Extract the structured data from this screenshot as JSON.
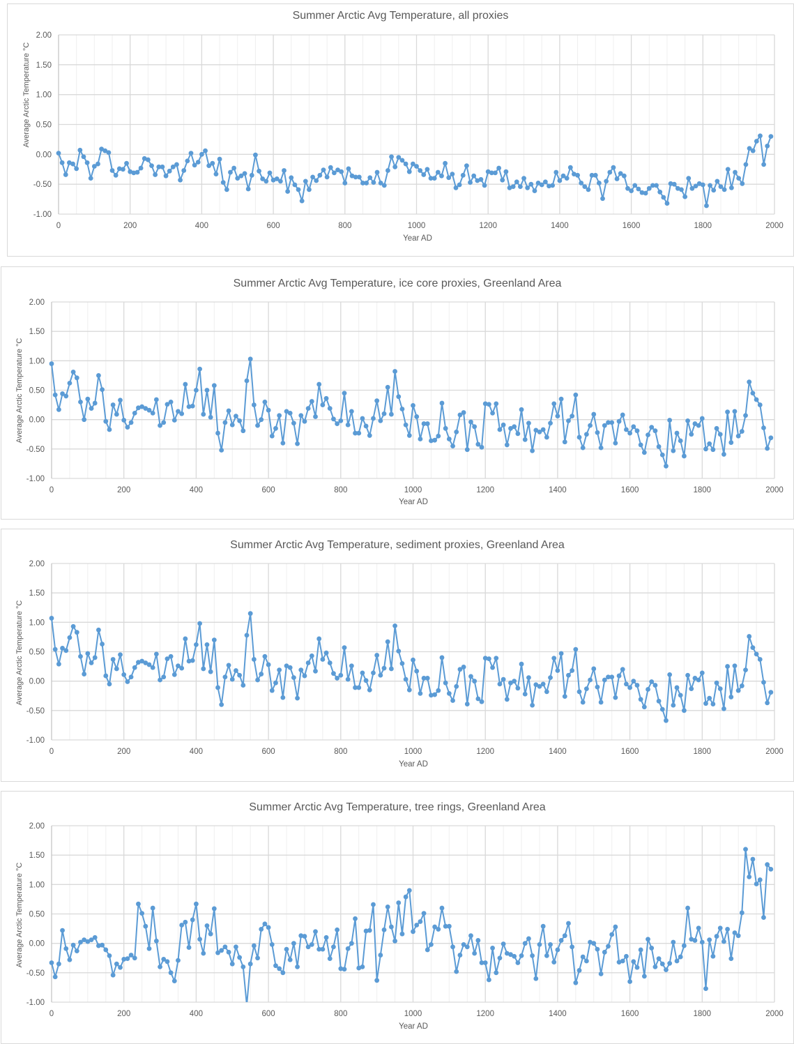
{
  "chart_data": [
    {
      "type": "line",
      "title": "Summer Arctic Avg Temperature,  all proxies",
      "xlabel": "Year AD",
      "ylabel": "Average Arctic Temperature °C",
      "xlim": [
        0,
        2000
      ],
      "ylim": [
        -1.0,
        2.0
      ],
      "xticks": [
        "0",
        "200",
        "400",
        "600",
        "800",
        "1000",
        "1200",
        "1400",
        "1600",
        "1800",
        "2000"
      ],
      "yticks": [
        "2.00",
        "1.50",
        "1.00",
        "0.50",
        "0.00",
        "-0.50",
        "-1.00"
      ],
      "grid": true,
      "color": "#5b9bd5",
      "x_start": 0,
      "x_step": 10,
      "values": [
        0.02,
        -0.14,
        -0.34,
        -0.14,
        -0.16,
        -0.24,
        0.07,
        -0.04,
        -0.14,
        -0.4,
        -0.2,
        -0.16,
        0.09,
        0.06,
        0.03,
        -0.27,
        -0.35,
        -0.24,
        -0.25,
        -0.15,
        -0.29,
        -0.31,
        -0.3,
        -0.23,
        -0.07,
        -0.09,
        -0.19,
        -0.34,
        -0.21,
        -0.21,
        -0.36,
        -0.28,
        -0.21,
        -0.17,
        -0.43,
        -0.27,
        -0.11,
        0.02,
        -0.18,
        -0.13,
        0.0,
        0.06,
        -0.19,
        -0.15,
        -0.33,
        -0.08,
        -0.47,
        -0.59,
        -0.3,
        -0.23,
        -0.4,
        -0.36,
        -0.32,
        -0.58,
        -0.35,
        -0.01,
        -0.28,
        -0.41,
        -0.45,
        -0.31,
        -0.43,
        -0.41,
        -0.45,
        -0.27,
        -0.62,
        -0.39,
        -0.51,
        -0.59,
        -0.78,
        -0.45,
        -0.59,
        -0.38,
        -0.44,
        -0.35,
        -0.26,
        -0.38,
        -0.22,
        -0.31,
        -0.26,
        -0.29,
        -0.48,
        -0.24,
        -0.36,
        -0.38,
        -0.38,
        -0.48,
        -0.48,
        -0.39,
        -0.47,
        -0.3,
        -0.48,
        -0.52,
        -0.27,
        -0.04,
        -0.21,
        -0.05,
        -0.1,
        -0.16,
        -0.29,
        -0.16,
        -0.2,
        -0.27,
        -0.34,
        -0.25,
        -0.4,
        -0.4,
        -0.3,
        -0.36,
        -0.15,
        -0.39,
        -0.33,
        -0.56,
        -0.51,
        -0.35,
        -0.19,
        -0.47,
        -0.36,
        -0.44,
        -0.42,
        -0.52,
        -0.29,
        -0.31,
        -0.31,
        -0.23,
        -0.43,
        -0.29,
        -0.56,
        -0.54,
        -0.46,
        -0.54,
        -0.4,
        -0.56,
        -0.5,
        -0.61,
        -0.48,
        -0.51,
        -0.46,
        -0.53,
        -0.52,
        -0.3,
        -0.44,
        -0.36,
        -0.4,
        -0.22,
        -0.33,
        -0.35,
        -0.48,
        -0.54,
        -0.59,
        -0.35,
        -0.35,
        -0.48,
        -0.74,
        -0.45,
        -0.3,
        -0.22,
        -0.41,
        -0.32,
        -0.36,
        -0.57,
        -0.61,
        -0.52,
        -0.58,
        -0.64,
        -0.65,
        -0.57,
        -0.52,
        -0.52,
        -0.63,
        -0.72,
        -0.82,
        -0.49,
        -0.5,
        -0.57,
        -0.59,
        -0.71,
        -0.4,
        -0.57,
        -0.53,
        -0.49,
        -0.51,
        -0.86,
        -0.52,
        -0.6,
        -0.45,
        -0.54,
        -0.59,
        -0.25,
        -0.56,
        -0.3,
        -0.4,
        -0.49,
        -0.17,
        0.1,
        0.06,
        0.22,
        0.31,
        -0.17,
        0.14,
        0.3
      ]
    },
    {
      "type": "line",
      "title": "Summer Arctic Avg Temperature, ice core proxies, Greenland Area",
      "xlabel": "Year AD",
      "ylabel": "Average Arctic Temperature °C",
      "xlim": [
        0,
        2000
      ],
      "ylim": [
        -1.0,
        2.0
      ],
      "xticks": [
        "0",
        "200",
        "400",
        "600",
        "800",
        "1000",
        "1200",
        "1400",
        "1600",
        "1800",
        "2000"
      ],
      "yticks": [
        "2.00",
        "1.50",
        "1.00",
        "0.50",
        "0.00",
        "-0.50",
        "-1.00"
      ],
      "grid": true,
      "color": "#5b9bd5",
      "x_start": 0,
      "x_step": 10,
      "values": [
        0.95,
        0.42,
        0.17,
        0.44,
        0.4,
        0.62,
        0.81,
        0.71,
        0.3,
        0.0,
        0.35,
        0.19,
        0.28,
        0.75,
        0.51,
        -0.03,
        -0.17,
        0.25,
        0.09,
        0.33,
        -0.01,
        -0.13,
        -0.05,
        0.11,
        0.2,
        0.22,
        0.19,
        0.16,
        0.11,
        0.34,
        -0.1,
        -0.05,
        0.26,
        0.3,
        -0.01,
        0.14,
        0.1,
        0.6,
        0.22,
        0.23,
        0.5,
        0.86,
        0.09,
        0.5,
        0.04,
        0.58,
        -0.23,
        -0.52,
        -0.05,
        0.15,
        -0.09,
        0.06,
        -0.02,
        -0.19,
        0.66,
        1.03,
        0.25,
        -0.1,
        0.0,
        0.3,
        0.16,
        -0.28,
        -0.15,
        0.07,
        -0.4,
        0.14,
        0.11,
        -0.06,
        -0.41,
        0.07,
        -0.03,
        0.19,
        0.31,
        0.05,
        0.6,
        0.25,
        0.36,
        0.19,
        0.01,
        -0.07,
        -0.02,
        0.45,
        -0.09,
        0.14,
        -0.23,
        -0.23,
        0.02,
        -0.11,
        -0.27,
        0.02,
        0.32,
        -0.02,
        0.1,
        0.55,
        0.09,
        0.82,
        0.39,
        0.18,
        -0.09,
        -0.27,
        0.24,
        0.05,
        -0.33,
        -0.07,
        -0.07,
        -0.36,
        -0.35,
        -0.28,
        0.28,
        -0.15,
        -0.33,
        -0.45,
        -0.21,
        0.08,
        0.12,
        -0.51,
        -0.04,
        -0.12,
        -0.42,
        -0.47,
        0.27,
        0.26,
        0.11,
        0.27,
        -0.17,
        -0.09,
        -0.43,
        -0.15,
        -0.12,
        -0.24,
        0.17,
        -0.34,
        -0.06,
        -0.53,
        -0.18,
        -0.21,
        -0.17,
        -0.3,
        -0.06,
        0.27,
        0.06,
        0.35,
        -0.38,
        -0.02,
        0.06,
        0.42,
        -0.3,
        -0.48,
        -0.25,
        -0.1,
        0.09,
        -0.22,
        -0.48,
        -0.1,
        -0.05,
        -0.05,
        -0.4,
        -0.03,
        0.08,
        -0.17,
        -0.23,
        -0.12,
        -0.19,
        -0.43,
        -0.56,
        -0.26,
        -0.13,
        -0.19,
        -0.46,
        -0.6,
        -0.79,
        -0.01,
        -0.53,
        -0.23,
        -0.36,
        -0.62,
        -0.02,
        -0.25,
        -0.07,
        -0.1,
        0.02,
        -0.5,
        -0.41,
        -0.51,
        -0.15,
        -0.25,
        -0.59,
        0.13,
        -0.39,
        0.14,
        -0.28,
        -0.2,
        0.07,
        0.64,
        0.45,
        0.34,
        0.25,
        -0.14,
        -0.49,
        -0.31
      ]
    },
    {
      "type": "line",
      "title": "Summer Arctic Avg Temperature, sediment proxies, Greenland Area",
      "xlabel": "Year AD",
      "ylabel": "Average Arctic Temperature °C",
      "xlim": [
        0,
        2000
      ],
      "ylim": [
        -1.0,
        2.0
      ],
      "xticks": [
        "0",
        "200",
        "400",
        "600",
        "800",
        "1000",
        "1200",
        "1400",
        "1600",
        "1800",
        "2000"
      ],
      "yticks": [
        "2.00",
        "1.50",
        "1.00",
        "0.50",
        "0.00",
        "-0.50",
        "-1.00"
      ],
      "grid": true,
      "color": "#5b9bd5",
      "x_start": 0,
      "x_step": 10,
      "values": [
        1.07,
        0.54,
        0.29,
        0.56,
        0.52,
        0.74,
        0.93,
        0.83,
        0.42,
        0.12,
        0.47,
        0.31,
        0.4,
        0.87,
        0.63,
        0.09,
        -0.05,
        0.37,
        0.21,
        0.45,
        0.11,
        -0.01,
        0.07,
        0.23,
        0.32,
        0.34,
        0.31,
        0.28,
        0.23,
        0.46,
        0.02,
        0.07,
        0.38,
        0.42,
        0.11,
        0.26,
        0.22,
        0.72,
        0.34,
        0.35,
        0.62,
        0.98,
        0.21,
        0.62,
        0.16,
        0.7,
        -0.11,
        -0.4,
        0.07,
        0.27,
        0.03,
        0.18,
        0.1,
        -0.07,
        0.78,
        1.15,
        0.37,
        0.02,
        0.12,
        0.42,
        0.28,
        -0.16,
        -0.03,
        0.19,
        -0.28,
        0.26,
        0.23,
        0.06,
        -0.29,
        0.19,
        0.09,
        0.31,
        0.43,
        0.17,
        0.72,
        0.37,
        0.48,
        0.31,
        0.13,
        0.05,
        0.1,
        0.57,
        0.03,
        0.26,
        -0.11,
        -0.11,
        0.14,
        0.01,
        -0.15,
        0.14,
        0.44,
        0.1,
        0.22,
        0.67,
        0.21,
        0.94,
        0.51,
        0.3,
        0.03,
        -0.15,
        0.36,
        0.17,
        -0.21,
        0.05,
        0.05,
        -0.24,
        -0.23,
        -0.16,
        0.4,
        -0.03,
        -0.21,
        -0.33,
        -0.09,
        0.2,
        0.24,
        -0.39,
        0.08,
        0.0,
        -0.3,
        -0.35,
        0.39,
        0.38,
        0.23,
        0.39,
        -0.05,
        0.03,
        -0.31,
        -0.03,
        0.0,
        -0.12,
        0.29,
        -0.22,
        0.06,
        -0.41,
        -0.06,
        -0.09,
        -0.05,
        -0.18,
        0.06,
        0.39,
        0.18,
        0.47,
        -0.26,
        0.1,
        0.18,
        0.54,
        -0.18,
        -0.36,
        -0.13,
        0.02,
        0.21,
        -0.1,
        -0.36,
        0.02,
        0.07,
        0.07,
        -0.28,
        0.09,
        0.2,
        -0.05,
        -0.11,
        0.0,
        -0.07,
        -0.31,
        -0.44,
        -0.14,
        -0.01,
        -0.07,
        -0.34,
        -0.48,
        -0.67,
        0.11,
        -0.41,
        -0.11,
        -0.24,
        -0.5,
        0.1,
        -0.13,
        0.05,
        0.02,
        0.14,
        -0.38,
        -0.29,
        -0.39,
        -0.03,
        -0.13,
        -0.47,
        0.25,
        -0.27,
        0.26,
        -0.16,
        -0.08,
        0.19,
        0.76,
        0.57,
        0.46,
        0.37,
        -0.02,
        -0.37,
        -0.19
      ]
    },
    {
      "type": "line",
      "title": "Summer Arctic Avg Temperature, tree rings, Greenland Area",
      "xlabel": "Year AD",
      "ylabel": "Average Arctic Temperature °C",
      "xlim": [
        0,
        2000
      ],
      "ylim": [
        -1.0,
        2.0
      ],
      "xticks": [
        "0",
        "200",
        "400",
        "600",
        "800",
        "1000",
        "1200",
        "1400",
        "1600",
        "1800",
        "2000"
      ],
      "yticks": [
        "2.00",
        "1.50",
        "1.00",
        "0.50",
        "0.00",
        "-0.50",
        "-1.00"
      ],
      "grid": true,
      "color": "#5b9bd5",
      "x_start": 0,
      "x_step": 10,
      "values": [
        -0.33,
        -0.57,
        -0.35,
        0.22,
        -0.09,
        -0.28,
        -0.03,
        -0.13,
        0.02,
        0.06,
        0.03,
        0.06,
        0.1,
        -0.04,
        -0.03,
        -0.11,
        -0.21,
        -0.54,
        -0.35,
        -0.41,
        -0.27,
        -0.26,
        -0.2,
        -0.25,
        0.67,
        0.51,
        0.29,
        -0.09,
        0.6,
        0.04,
        -0.4,
        -0.27,
        -0.31,
        -0.5,
        -0.64,
        -0.29,
        0.31,
        0.36,
        -0.07,
        0.4,
        0.67,
        0.07,
        -0.17,
        0.3,
        0.16,
        0.59,
        -0.16,
        -0.12,
        -0.06,
        -0.15,
        -0.35,
        -0.06,
        -0.24,
        -0.4,
        -1.05,
        -0.35,
        -0.04,
        -0.25,
        0.24,
        0.33,
        0.27,
        -0.02,
        -0.38,
        -0.43,
        -0.5,
        -0.1,
        -0.28,
        0.0,
        -0.4,
        0.13,
        0.12,
        -0.06,
        -0.02,
        0.2,
        -0.1,
        -0.1,
        0.1,
        -0.26,
        -0.06,
        0.23,
        -0.43,
        -0.44,
        -0.09,
        0.0,
        0.42,
        -0.42,
        -0.4,
        0.21,
        0.22,
        0.66,
        -0.63,
        -0.2,
        0.23,
        0.62,
        0.28,
        0.04,
        0.69,
        0.16,
        0.79,
        0.9,
        0.2,
        0.31,
        0.37,
        0.51,
        -0.11,
        -0.02,
        0.28,
        0.24,
        0.6,
        0.29,
        0.29,
        -0.06,
        -0.48,
        -0.2,
        -0.02,
        -0.06,
        0.13,
        -0.17,
        0.05,
        -0.33,
        -0.33,
        -0.62,
        -0.08,
        -0.5,
        -0.25,
        -0.01,
        -0.17,
        -0.19,
        -0.22,
        -0.33,
        -0.21,
        0.0,
        0.08,
        -0.21,
        -0.6,
        -0.02,
        0.29,
        -0.21,
        -0.02,
        -0.32,
        -0.11,
        0.05,
        0.13,
        0.34,
        -0.06,
        -0.67,
        -0.46,
        -0.23,
        -0.3,
        0.02,
        0.0,
        -0.1,
        -0.52,
        -0.15,
        -0.05,
        0.15,
        0.28,
        -0.32,
        -0.3,
        -0.22,
        -0.65,
        -0.31,
        -0.41,
        -0.11,
        -0.56,
        0.07,
        -0.08,
        -0.4,
        -0.26,
        -0.35,
        -0.45,
        -0.34,
        0.02,
        -0.3,
        -0.23,
        -0.04,
        0.6,
        0.07,
        0.05,
        0.26,
        0.02,
        -0.77,
        0.06,
        -0.22,
        0.12,
        0.26,
        0.03,
        0.24,
        -0.26,
        0.18,
        0.13,
        0.52,
        1.6,
        1.13,
        1.43,
        1.01,
        1.08,
        0.44,
        1.34,
        1.26
      ]
    }
  ]
}
